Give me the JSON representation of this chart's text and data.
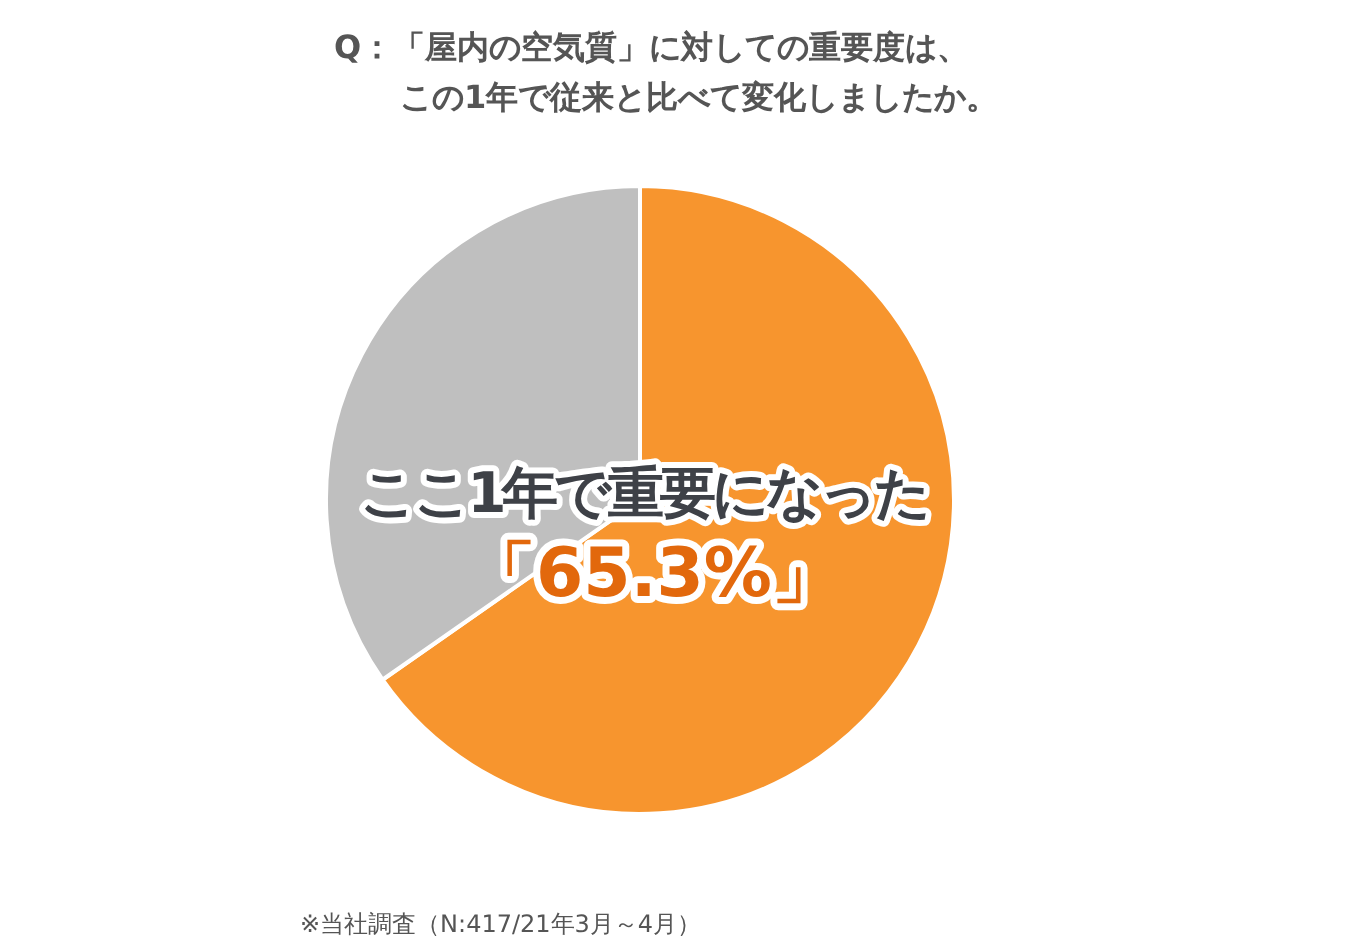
{
  "chart_data": {
    "type": "pie",
    "title": "Q：「屋内の空気質」に対しての重要度は、この1年で従来と比べて変化しましたか。",
    "categories": [
      "ここ1年で重要になった",
      null
    ],
    "values": [
      65.3,
      34.7
    ],
    "colors": [
      "#f7952e",
      "#bfbfbf"
    ],
    "value_labels": [
      "「65.3%」",
      null
    ],
    "legend": false,
    "annotations": [
      "※当社調査（N:417/21年3月～4月）"
    ]
  }
}
